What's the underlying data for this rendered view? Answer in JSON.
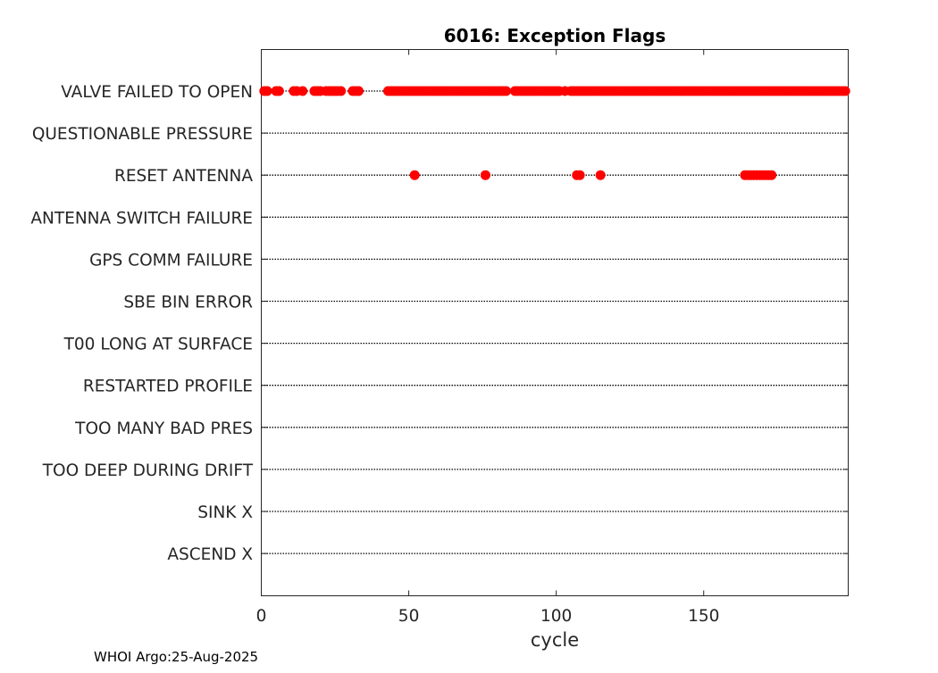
{
  "chart_data": {
    "type": "scatter",
    "title": "6016: Exception Flags",
    "xlabel": "cycle",
    "ylabel": "",
    "xlim": [
      0,
      199
    ],
    "xticks": [
      0,
      50,
      100,
      150
    ],
    "grid": false,
    "categories": [
      "VALVE FAILED TO OPEN",
      "QUESTIONABLE PRESSURE",
      "RESET ANTENNA",
      "ANTENNA SWITCH FAILURE",
      "GPS COMM FAILURE",
      "SBE BIN ERROR",
      "T00 LONG AT SURFACE",
      "RESTARTED PROFILE",
      "TOO MANY BAD PRES",
      "TOO DEEP DURING DRIFT",
      "SINK X",
      "ASCEND X"
    ],
    "series": [
      {
        "name": "VALVE FAILED TO OPEN",
        "cycle_ranges": [
          [
            1,
            2
          ],
          [
            5,
            6
          ],
          [
            11,
            12
          ],
          [
            14,
            14
          ],
          [
            18,
            20
          ],
          [
            22,
            27
          ],
          [
            31,
            33
          ],
          [
            43,
            83
          ],
          [
            86,
            101
          ],
          [
            103,
            103
          ],
          [
            105,
            198
          ]
        ]
      },
      {
        "name": "QUESTIONABLE PRESSURE",
        "cycle_ranges": []
      },
      {
        "name": "RESET ANTENNA",
        "cycle_ranges": [
          [
            52,
            52
          ],
          [
            76,
            76
          ],
          [
            107,
            108
          ],
          [
            115,
            115
          ],
          [
            164,
            173
          ]
        ]
      },
      {
        "name": "ANTENNA SWITCH FAILURE",
        "cycle_ranges": []
      },
      {
        "name": "GPS COMM FAILURE",
        "cycle_ranges": []
      },
      {
        "name": "SBE BIN ERROR",
        "cycle_ranges": []
      },
      {
        "name": "T00 LONG AT SURFACE",
        "cycle_ranges": []
      },
      {
        "name": "RESTARTED PROFILE",
        "cycle_ranges": []
      },
      {
        "name": "TOO MANY BAD PRES",
        "cycle_ranges": []
      },
      {
        "name": "TOO DEEP DURING DRIFT",
        "cycle_ranges": []
      },
      {
        "name": "SINK X",
        "cycle_ranges": []
      },
      {
        "name": "ASCEND X",
        "cycle_ranges": []
      }
    ],
    "marker_color": "#ff0000",
    "line_color": "#000000"
  },
  "footer": "WHOI Argo:25-Aug-2025"
}
